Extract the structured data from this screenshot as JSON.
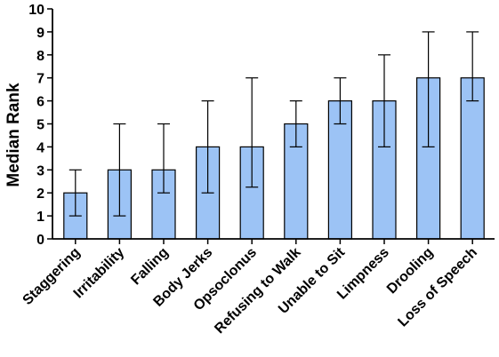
{
  "chart_data": {
    "type": "bar",
    "title": "",
    "xlabel": "",
    "ylabel": "Median Rank",
    "ylim": [
      0,
      10
    ],
    "yticks": [
      0,
      1,
      2,
      3,
      4,
      5,
      6,
      7,
      8,
      9,
      10
    ],
    "categories": [
      "Staggering",
      "Irritability",
      "Falling",
      "Body Jerks",
      "Opsoclonus",
      "Refusing to Walk",
      "Unable to Sit",
      "Limpness",
      "Drooling",
      "Loss of Speech"
    ],
    "values": [
      2,
      3,
      3,
      4,
      4,
      5,
      6,
      6,
      7,
      7
    ],
    "error_low": [
      1,
      1,
      2,
      2,
      2.25,
      4,
      5,
      4,
      4,
      6
    ],
    "error_high": [
      3,
      5,
      5,
      6,
      7,
      6,
      7,
      8,
      9,
      9
    ],
    "grid": false,
    "bar_color": "#9cc3f5",
    "bar_edge_color": "#000000"
  }
}
